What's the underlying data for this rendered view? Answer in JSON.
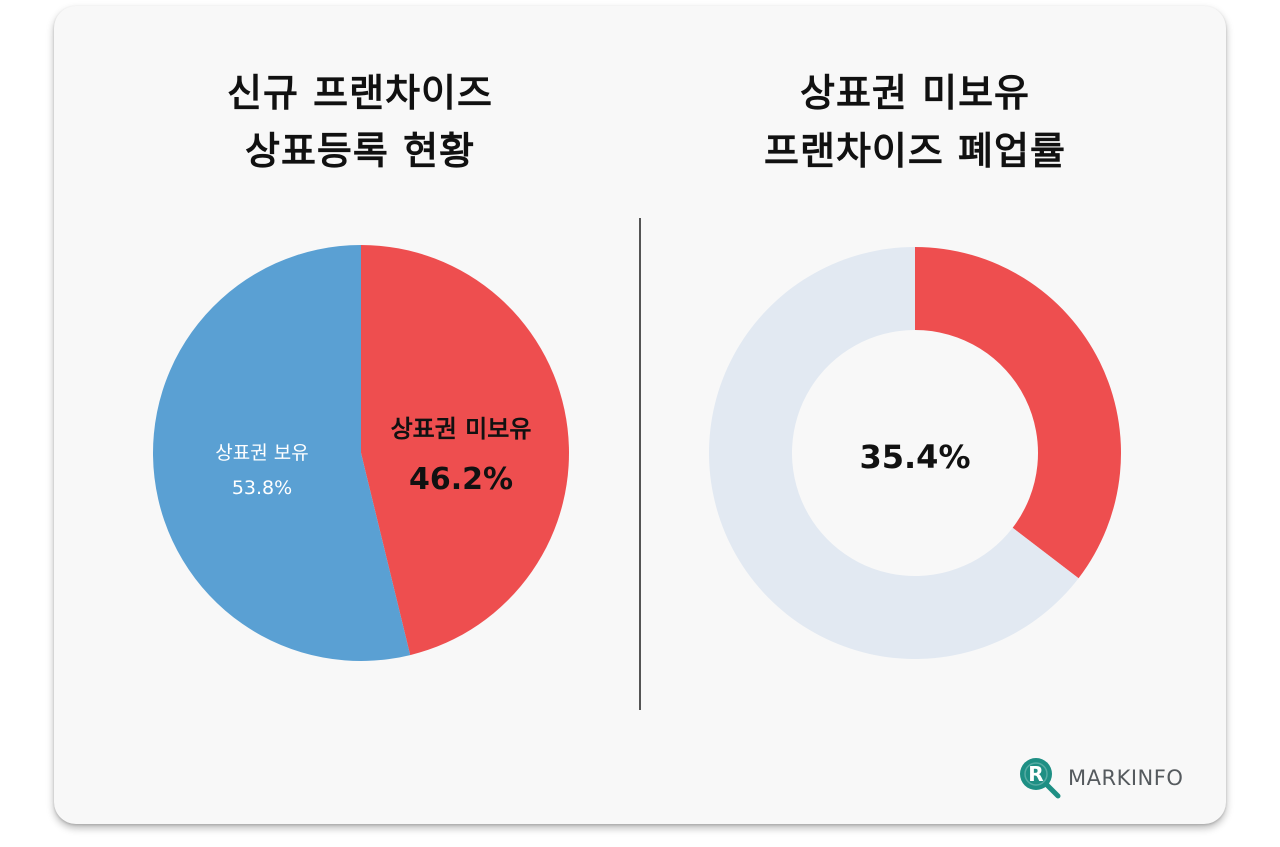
{
  "titles": {
    "left_line1": "신규 프랜차이즈",
    "left_line2": "상표등록 현황",
    "right_line1": "상표권 미보유",
    "right_line2": "프랜차이즈 폐업률"
  },
  "logo": {
    "mark": "R",
    "text": "MARKINFO",
    "color": "#1e8f84"
  },
  "chart_data": [
    {
      "type": "pie",
      "slices": [
        {
          "label": "상표권 미보유",
          "value": 46.2,
          "value_label": "46.2%",
          "color": "#ee4e4f"
        },
        {
          "label": "상표권 보유",
          "value": 53.8,
          "value_label": "53.8%",
          "color": "#5aa0d3"
        }
      ]
    },
    {
      "type": "pie",
      "donut": true,
      "slices": [
        {
          "label": "",
          "value": 35.4,
          "color": "#ee4e4f"
        },
        {
          "label": "",
          "value": 64.6,
          "color": "#e2e9f2"
        }
      ],
      "center_label": "35.4%"
    }
  ]
}
